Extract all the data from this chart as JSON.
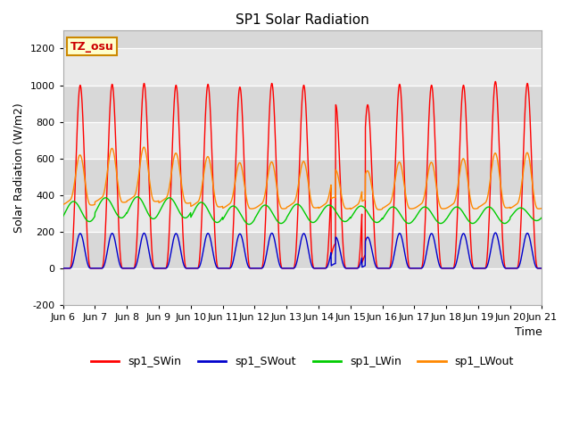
{
  "title": "SP1 Solar Radiation",
  "xlabel": "Time",
  "ylabel": "Solar Radiation (W/m2)",
  "ylim": [
    -200,
    1300
  ],
  "yticks": [
    -200,
    0,
    200,
    400,
    600,
    800,
    1000,
    1200
  ],
  "tz_label": "TZ_osu",
  "x_tick_labels": [
    "Jun 6",
    "Jun 7",
    "Jun 8",
    "Jun 9",
    "Jun 10",
    "Jun 11",
    "Jun 12",
    "Jun 13",
    "Jun 14",
    "Jun 15",
    "Jun 16",
    "Jun 17",
    "Jun 18",
    "Jun 19",
    "Jun 20",
    "Jun 21"
  ],
  "colors": {
    "SWin": "#ff0000",
    "SWout": "#0000cc",
    "LWin": "#00cc00",
    "LWout": "#ff8800"
  },
  "legend_labels": [
    "sp1_SWin",
    "sp1_SWout",
    "sp1_LWin",
    "sp1_LWout"
  ],
  "bg_color": "#d8d8d8",
  "figsize": [
    6.4,
    4.8
  ],
  "dpi": 100
}
